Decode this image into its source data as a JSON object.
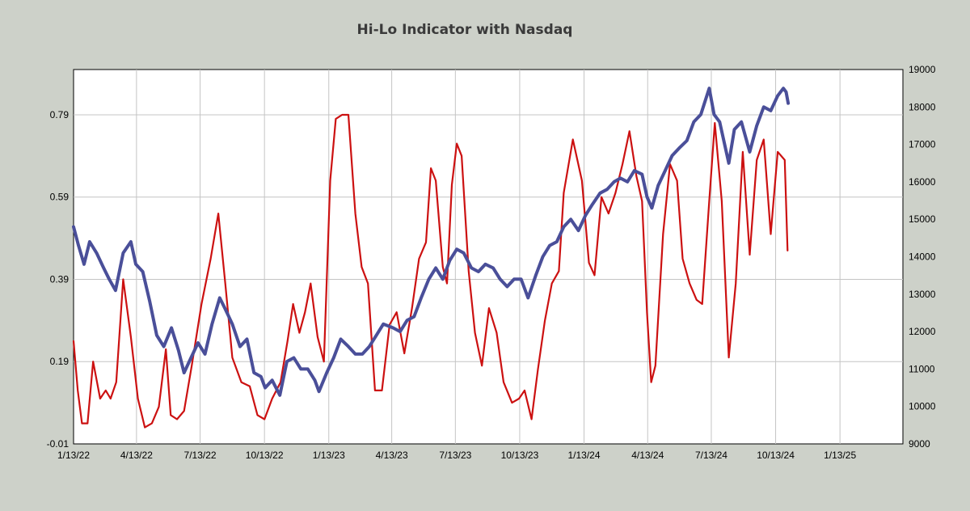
{
  "chart_data": {
    "type": "line",
    "title": "Hi-Lo Indicator with Nasdaq",
    "xlabel": "",
    "ylabel": "",
    "grid": true,
    "x_range": [
      "2022-01-13",
      "2025-04-13"
    ],
    "x_ticks": [
      "1/13/22",
      "4/13/22",
      "7/13/22",
      "10/13/22",
      "1/13/23",
      "4/13/23",
      "7/13/23",
      "10/13/23",
      "1/13/24",
      "4/13/24",
      "7/13/24",
      "10/13/24",
      "1/13/25"
    ],
    "y_left": {
      "range": [
        -0.01,
        0.9
      ],
      "ticks": [
        -0.01,
        0.19,
        0.39,
        0.59,
        0.79
      ],
      "tick_labels": [
        "-0.01",
        "0.19",
        "0.39",
        "0.59",
        "0.79"
      ]
    },
    "y_right": {
      "range": [
        9000,
        19000
      ],
      "ticks": [
        9000,
        10000,
        11000,
        12000,
        13000,
        14000,
        15000,
        16000,
        17000,
        18000,
        19000
      ],
      "tick_labels": [
        "9000",
        "10000",
        "11000",
        "12000",
        "13000",
        "14000",
        "15000",
        "16000",
        "17000",
        "18000",
        "19000"
      ]
    },
    "series": [
      {
        "axis": "left",
        "color": "#cc1111",
        "points": [
          [
            "2022-01-13",
            0.24
          ],
          [
            "2022-01-19",
            0.12
          ],
          [
            "2022-01-25",
            0.04
          ],
          [
            "2022-02-02",
            0.04
          ],
          [
            "2022-02-10",
            0.19
          ],
          [
            "2022-02-20",
            0.1
          ],
          [
            "2022-02-28",
            0.12
          ],
          [
            "2022-03-07",
            0.1
          ],
          [
            "2022-03-15",
            0.14
          ],
          [
            "2022-03-25",
            0.39
          ],
          [
            "2022-04-05",
            0.25
          ],
          [
            "2022-04-15",
            0.1
          ],
          [
            "2022-04-25",
            0.03
          ],
          [
            "2022-05-05",
            0.04
          ],
          [
            "2022-05-15",
            0.08
          ],
          [
            "2022-05-25",
            0.22
          ],
          [
            "2022-06-01",
            0.06
          ],
          [
            "2022-06-10",
            0.05
          ],
          [
            "2022-06-20",
            0.07
          ],
          [
            "2022-07-01",
            0.18
          ],
          [
            "2022-07-15",
            0.33
          ],
          [
            "2022-07-28",
            0.44
          ],
          [
            "2022-08-08",
            0.55
          ],
          [
            "2022-08-18",
            0.38
          ],
          [
            "2022-08-28",
            0.2
          ],
          [
            "2022-09-10",
            0.14
          ],
          [
            "2022-09-22",
            0.13
          ],
          [
            "2022-10-03",
            0.06
          ],
          [
            "2022-10-13",
            0.05
          ],
          [
            "2022-10-24",
            0.1
          ],
          [
            "2022-11-05",
            0.14
          ],
          [
            "2022-11-15",
            0.24
          ],
          [
            "2022-11-23",
            0.33
          ],
          [
            "2022-12-02",
            0.26
          ],
          [
            "2022-12-10",
            0.31
          ],
          [
            "2022-12-18",
            0.38
          ],
          [
            "2022-12-28",
            0.25
          ],
          [
            "2023-01-06",
            0.19
          ],
          [
            "2023-01-15",
            0.63
          ],
          [
            "2023-01-23",
            0.78
          ],
          [
            "2023-02-01",
            0.79
          ],
          [
            "2023-02-10",
            0.79
          ],
          [
            "2023-02-20",
            0.55
          ],
          [
            "2023-03-01",
            0.42
          ],
          [
            "2023-03-10",
            0.38
          ],
          [
            "2023-03-20",
            0.12
          ],
          [
            "2023-03-30",
            0.12
          ],
          [
            "2023-04-10",
            0.28
          ],
          [
            "2023-04-20",
            0.31
          ],
          [
            "2023-05-01",
            0.21
          ],
          [
            "2023-05-12",
            0.32
          ],
          [
            "2023-05-22",
            0.44
          ],
          [
            "2023-06-01",
            0.48
          ],
          [
            "2023-06-08",
            0.66
          ],
          [
            "2023-06-15",
            0.63
          ],
          [
            "2023-06-25",
            0.42
          ],
          [
            "2023-07-01",
            0.38
          ],
          [
            "2023-07-08",
            0.62
          ],
          [
            "2023-07-15",
            0.72
          ],
          [
            "2023-07-22",
            0.69
          ],
          [
            "2023-08-01",
            0.41
          ],
          [
            "2023-08-10",
            0.26
          ],
          [
            "2023-08-20",
            0.18
          ],
          [
            "2023-08-30",
            0.32
          ],
          [
            "2023-09-10",
            0.26
          ],
          [
            "2023-09-20",
            0.14
          ],
          [
            "2023-10-02",
            0.09
          ],
          [
            "2023-10-12",
            0.1
          ],
          [
            "2023-10-20",
            0.12
          ],
          [
            "2023-10-30",
            0.05
          ],
          [
            "2023-11-08",
            0.17
          ],
          [
            "2023-11-18",
            0.29
          ],
          [
            "2023-11-28",
            0.38
          ],
          [
            "2023-12-08",
            0.41
          ],
          [
            "2023-12-15",
            0.6
          ],
          [
            "2023-12-28",
            0.73
          ],
          [
            "2024-01-10",
            0.63
          ],
          [
            "2024-01-20",
            0.43
          ],
          [
            "2024-01-28",
            0.4
          ],
          [
            "2024-02-07",
            0.59
          ],
          [
            "2024-02-17",
            0.55
          ],
          [
            "2024-02-27",
            0.6
          ],
          [
            "2024-03-08",
            0.67
          ],
          [
            "2024-03-18",
            0.75
          ],
          [
            "2024-03-28",
            0.64
          ],
          [
            "2024-04-05",
            0.58
          ],
          [
            "2024-04-12",
            0.31
          ],
          [
            "2024-04-18",
            0.14
          ],
          [
            "2024-04-24",
            0.18
          ],
          [
            "2024-05-05",
            0.5
          ],
          [
            "2024-05-15",
            0.67
          ],
          [
            "2024-05-25",
            0.63
          ],
          [
            "2024-06-02",
            0.44
          ],
          [
            "2024-06-12",
            0.38
          ],
          [
            "2024-06-22",
            0.34
          ],
          [
            "2024-06-30",
            0.33
          ],
          [
            "2024-07-10",
            0.58
          ],
          [
            "2024-07-18",
            0.77
          ],
          [
            "2024-07-28",
            0.58
          ],
          [
            "2024-08-07",
            0.2
          ],
          [
            "2024-08-17",
            0.38
          ],
          [
            "2024-08-27",
            0.7
          ],
          [
            "2024-09-06",
            0.45
          ],
          [
            "2024-09-16",
            0.68
          ],
          [
            "2024-09-26",
            0.73
          ],
          [
            "2024-10-06",
            0.5
          ],
          [
            "2024-10-16",
            0.7
          ],
          [
            "2024-10-26",
            0.68
          ],
          [
            "2024-10-30",
            0.46
          ]
        ]
      },
      {
        "axis": "right",
        "color": "#4a4f99",
        "points": [
          [
            "2022-01-13",
            14800
          ],
          [
            "2022-01-20",
            14300
          ],
          [
            "2022-01-28",
            13800
          ],
          [
            "2022-02-05",
            14400
          ],
          [
            "2022-02-15",
            14100
          ],
          [
            "2022-02-25",
            13700
          ],
          [
            "2022-03-05",
            13400
          ],
          [
            "2022-03-14",
            13100
          ],
          [
            "2022-03-25",
            14100
          ],
          [
            "2022-04-05",
            14400
          ],
          [
            "2022-04-12",
            13800
          ],
          [
            "2022-04-22",
            13600
          ],
          [
            "2022-05-02",
            12800
          ],
          [
            "2022-05-12",
            11900
          ],
          [
            "2022-05-22",
            11600
          ],
          [
            "2022-06-02",
            12100
          ],
          [
            "2022-06-12",
            11500
          ],
          [
            "2022-06-20",
            10900
          ],
          [
            "2022-06-30",
            11300
          ],
          [
            "2022-07-10",
            11700
          ],
          [
            "2022-07-20",
            11400
          ],
          [
            "2022-07-30",
            12200
          ],
          [
            "2022-08-10",
            12900
          ],
          [
            "2022-08-18",
            12600
          ],
          [
            "2022-08-28",
            12200
          ],
          [
            "2022-09-08",
            11600
          ],
          [
            "2022-09-18",
            11800
          ],
          [
            "2022-09-28",
            10900
          ],
          [
            "2022-10-08",
            10800
          ],
          [
            "2022-10-14",
            10500
          ],
          [
            "2022-10-24",
            10700
          ],
          [
            "2022-11-04",
            10300
          ],
          [
            "2022-11-14",
            11200
          ],
          [
            "2022-11-24",
            11300
          ],
          [
            "2022-12-04",
            11000
          ],
          [
            "2022-12-14",
            11000
          ],
          [
            "2022-12-24",
            10700
          ],
          [
            "2022-12-30",
            10400
          ],
          [
            "2023-01-10",
            10900
          ],
          [
            "2023-01-20",
            11300
          ],
          [
            "2023-01-30",
            11800
          ],
          [
            "2023-02-10",
            11600
          ],
          [
            "2023-02-20",
            11400
          ],
          [
            "2023-03-02",
            11400
          ],
          [
            "2023-03-12",
            11600
          ],
          [
            "2023-03-22",
            11900
          ],
          [
            "2023-04-01",
            12200
          ],
          [
            "2023-04-15",
            12100
          ],
          [
            "2023-04-25",
            12000
          ],
          [
            "2023-05-05",
            12300
          ],
          [
            "2023-05-15",
            12400
          ],
          [
            "2023-05-25",
            12900
          ],
          [
            "2023-06-05",
            13400
          ],
          [
            "2023-06-15",
            13700
          ],
          [
            "2023-06-25",
            13400
          ],
          [
            "2023-07-05",
            13900
          ],
          [
            "2023-07-15",
            14200
          ],
          [
            "2023-07-25",
            14100
          ],
          [
            "2023-08-05",
            13700
          ],
          [
            "2023-08-15",
            13600
          ],
          [
            "2023-08-25",
            13800
          ],
          [
            "2023-09-05",
            13700
          ],
          [
            "2023-09-15",
            13400
          ],
          [
            "2023-09-25",
            13200
          ],
          [
            "2023-10-05",
            13400
          ],
          [
            "2023-10-15",
            13400
          ],
          [
            "2023-10-25",
            12900
          ],
          [
            "2023-11-05",
            13500
          ],
          [
            "2023-11-15",
            14000
          ],
          [
            "2023-11-25",
            14300
          ],
          [
            "2023-12-05",
            14400
          ],
          [
            "2023-12-15",
            14800
          ],
          [
            "2023-12-25",
            15000
          ],
          [
            "2024-01-05",
            14700
          ],
          [
            "2024-01-15",
            15100
          ],
          [
            "2024-01-25",
            15400
          ],
          [
            "2024-02-05",
            15700
          ],
          [
            "2024-02-15",
            15800
          ],
          [
            "2024-02-25",
            16000
          ],
          [
            "2024-03-05",
            16100
          ],
          [
            "2024-03-15",
            16000
          ],
          [
            "2024-03-25",
            16300
          ],
          [
            "2024-04-05",
            16200
          ],
          [
            "2024-04-12",
            15600
          ],
          [
            "2024-04-19",
            15300
          ],
          [
            "2024-04-28",
            15900
          ],
          [
            "2024-05-08",
            16300
          ],
          [
            "2024-05-18",
            16700
          ],
          [
            "2024-05-28",
            16900
          ],
          [
            "2024-06-08",
            17100
          ],
          [
            "2024-06-18",
            17600
          ],
          [
            "2024-06-28",
            17800
          ],
          [
            "2024-07-10",
            18500
          ],
          [
            "2024-07-17",
            17800
          ],
          [
            "2024-07-25",
            17600
          ],
          [
            "2024-08-07",
            16500
          ],
          [
            "2024-08-15",
            17400
          ],
          [
            "2024-08-25",
            17600
          ],
          [
            "2024-09-06",
            16800
          ],
          [
            "2024-09-16",
            17500
          ],
          [
            "2024-09-26",
            18000
          ],
          [
            "2024-10-06",
            17900
          ],
          [
            "2024-10-16",
            18300
          ],
          [
            "2024-10-24",
            18500
          ],
          [
            "2024-10-28",
            18400
          ],
          [
            "2024-10-31",
            18100
          ]
        ]
      }
    ]
  }
}
